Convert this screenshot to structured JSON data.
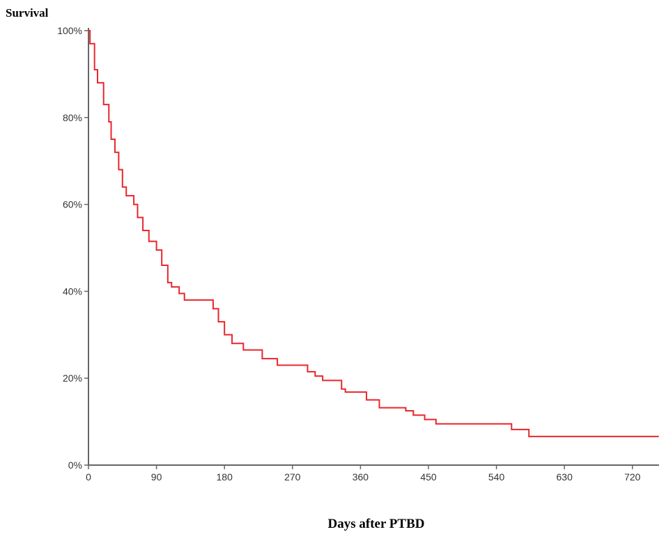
{
  "chart_data": {
    "type": "line",
    "subtype": "kaplan-meier step",
    "ylabel": "Survival",
    "xlabel": "Days after PTBD",
    "xlim": [
      0,
      755
    ],
    "ylim": [
      0,
      100
    ],
    "xticks": [
      0,
      90,
      180,
      270,
      360,
      450,
      540,
      630,
      720
    ],
    "yticks": [
      0,
      20,
      40,
      60,
      80,
      100
    ],
    "ytick_labels": [
      "0%",
      "20%",
      "40%",
      "60%",
      "80%",
      "100%"
    ],
    "grid": false,
    "series": [
      {
        "name": "Survival",
        "color": "#e8262b",
        "points": [
          [
            0,
            100
          ],
          [
            2,
            97
          ],
          [
            8,
            91
          ],
          [
            12,
            88
          ],
          [
            20,
            83
          ],
          [
            27,
            79
          ],
          [
            30,
            75
          ],
          [
            35,
            72
          ],
          [
            40,
            68
          ],
          [
            45,
            64
          ],
          [
            50,
            62
          ],
          [
            60,
            60
          ],
          [
            65,
            57
          ],
          [
            72,
            54
          ],
          [
            80,
            51.5
          ],
          [
            90,
            49.5
          ],
          [
            97,
            46
          ],
          [
            105,
            42
          ],
          [
            110,
            41
          ],
          [
            120,
            39.5
          ],
          [
            127,
            38
          ],
          [
            158,
            38
          ],
          [
            165,
            36
          ],
          [
            172,
            33
          ],
          [
            180,
            30
          ],
          [
            190,
            28
          ],
          [
            205,
            26.5
          ],
          [
            230,
            24.5
          ],
          [
            250,
            23
          ],
          [
            290,
            21.5
          ],
          [
            300,
            20.5
          ],
          [
            310,
            19.5
          ],
          [
            335,
            17.5
          ],
          [
            340,
            16.8
          ],
          [
            368,
            15
          ],
          [
            385,
            13.2
          ],
          [
            420,
            12.5
          ],
          [
            430,
            11.5
          ],
          [
            445,
            10.5
          ],
          [
            460,
            9.5
          ],
          [
            560,
            8.2
          ],
          [
            583,
            6.6
          ],
          [
            755,
            6.6
          ]
        ]
      }
    ]
  }
}
